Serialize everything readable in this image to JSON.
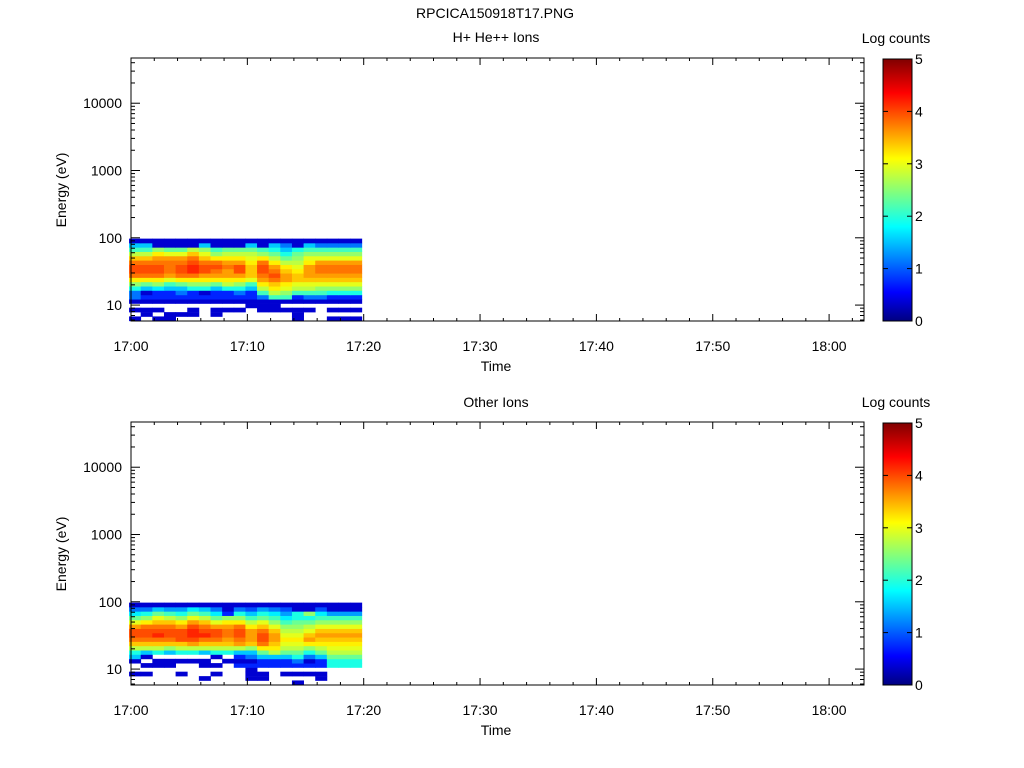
{
  "page": {
    "title": "RPCICA150918T17.PNG"
  },
  "chart_data": [
    {
      "type": "heatmap",
      "title": "H+ He++ Ions",
      "xlabel": "Time",
      "ylabel": "Energy (eV)",
      "x_ticks": [
        "17:00",
        "17:10",
        "17:20",
        "17:30",
        "17:40",
        "17:50",
        "18:00"
      ],
      "y_ticks": [
        "10",
        "100",
        "1000",
        "10000"
      ],
      "y_scale": "log",
      "ylim": [
        5.8,
        47000
      ],
      "xlim": [
        "17:00",
        "18:03"
      ],
      "colorbar": {
        "label": "Log counts",
        "ticks": [
          "0",
          "1",
          "2",
          "3",
          "4",
          "5"
        ],
        "range": [
          0,
          5
        ],
        "colormap": "jet"
      },
      "time_bins": [
        "17:00:20",
        "17:01:20",
        "17:02:20",
        "17:03:20",
        "17:04:20",
        "17:05:20",
        "17:06:20",
        "17:07:20",
        "17:08:20",
        "17:09:20",
        "17:10:20",
        "17:11:20",
        "17:12:20",
        "17:13:20",
        "17:14:20",
        "17:15:20",
        "17:16:20",
        "17:17:20",
        "17:18:20",
        "17:19:20"
      ],
      "energy_bins_eV": [
        6.3,
        7.3,
        8.5,
        9.8,
        11.4,
        13.2,
        15.3,
        17.8,
        20.6,
        23.9,
        27.7,
        32.1,
        37.2,
        43.1,
        50.0,
        58.0,
        67.2,
        77.9,
        90.3
      ],
      "log_counts": [
        [
          0.4,
          0,
          0.4,
          0.4,
          0,
          0,
          0,
          0,
          0,
          0,
          0,
          0,
          0,
          0,
          0.4,
          0,
          0,
          0.4,
          0.4,
          0.4
        ],
        [
          0,
          0.4,
          0,
          0.4,
          0.4,
          0.4,
          0,
          0.4,
          0,
          0,
          0,
          0,
          0,
          0,
          0.4,
          0,
          0,
          0,
          0,
          0
        ],
        [
          0.4,
          0.4,
          0.4,
          0,
          0,
          0.4,
          0,
          0.4,
          0.4,
          0.4,
          0,
          0.4,
          0.4,
          0.4,
          0.4,
          0.4,
          0,
          0.4,
          0.4,
          0.4
        ],
        [
          0,
          0,
          0,
          0,
          0,
          0,
          0,
          0,
          0,
          0,
          0.4,
          0.4,
          0.4,
          0,
          0,
          0,
          0,
          0,
          0,
          0
        ],
        [
          0.4,
          0.4,
          0.4,
          0.4,
          0.4,
          0.4,
          0.4,
          0.4,
          0.4,
          0.4,
          0.4,
          0.4,
          0.4,
          0.4,
          0.4,
          0.4,
          0.4,
          0.4,
          0.4,
          0.4
        ],
        [
          1.2,
          0.8,
          0.8,
          0.8,
          0.8,
          0.8,
          0.8,
          0.8,
          0.8,
          0.8,
          0.8,
          1.2,
          2.2,
          2.2,
          0.8,
          1.2,
          1.2,
          0.8,
          0.8,
          0.8
        ],
        [
          1.2,
          0.4,
          0.8,
          0.8,
          1.2,
          0.8,
          0.4,
          0.8,
          0.8,
          1.2,
          0.8,
          2.2,
          2.8,
          2.6,
          2.2,
          2.2,
          2.2,
          2.0,
          2.0,
          2.0
        ],
        [
          2.0,
          1.6,
          1.8,
          1.6,
          1.6,
          2.0,
          2.0,
          1.6,
          2.0,
          2.0,
          1.6,
          2.8,
          3.2,
          3.0,
          2.8,
          2.8,
          2.6,
          2.6,
          2.6,
          2.6
        ],
        [
          2.6,
          2.4,
          2.6,
          2.2,
          2.4,
          2.6,
          2.6,
          2.4,
          2.8,
          2.6,
          2.2,
          3.2,
          3.4,
          3.2,
          3.0,
          3.0,
          3.0,
          3.0,
          3.0,
          3.0
        ],
        [
          3.2,
          3.2,
          3.2,
          3.0,
          3.2,
          3.2,
          3.2,
          3.2,
          3.2,
          3.2,
          3.0,
          3.6,
          3.8,
          3.6,
          3.4,
          3.4,
          3.4,
          3.4,
          3.4,
          3.4
        ],
        [
          3.8,
          3.8,
          3.8,
          3.6,
          3.8,
          3.8,
          3.6,
          3.6,
          3.6,
          3.6,
          3.4,
          3.8,
          4.0,
          3.6,
          3.4,
          3.6,
          3.6,
          3.6,
          3.6,
          3.6
        ],
        [
          4.0,
          4.0,
          4.0,
          3.8,
          4.0,
          4.2,
          4.0,
          3.8,
          3.6,
          4.0,
          3.4,
          4.0,
          3.8,
          3.4,
          3.2,
          3.6,
          3.8,
          3.8,
          3.8,
          3.8
        ],
        [
          4.0,
          4.0,
          4.0,
          3.8,
          4.0,
          4.2,
          4.0,
          4.0,
          3.8,
          4.0,
          3.4,
          4.0,
          3.6,
          3.2,
          3.0,
          3.6,
          3.8,
          3.8,
          3.8,
          3.8
        ],
        [
          3.8,
          3.8,
          3.8,
          3.8,
          3.8,
          4.0,
          3.8,
          3.8,
          3.6,
          3.6,
          3.2,
          3.8,
          3.2,
          2.8,
          2.8,
          3.2,
          3.6,
          3.6,
          3.6,
          3.6
        ],
        [
          3.4,
          3.4,
          3.6,
          3.6,
          3.6,
          3.8,
          3.4,
          3.2,
          3.2,
          3.2,
          3.0,
          3.2,
          2.8,
          2.4,
          2.6,
          3.0,
          3.0,
          3.0,
          3.0,
          3.0
        ],
        [
          2.8,
          2.8,
          3.2,
          3.0,
          3.0,
          3.4,
          3.0,
          2.6,
          2.8,
          2.8,
          2.8,
          2.6,
          2.4,
          2.0,
          2.4,
          2.6,
          2.6,
          2.6,
          2.6,
          2.6
        ],
        [
          2.2,
          2.2,
          2.6,
          2.4,
          2.4,
          2.8,
          2.6,
          2.2,
          2.4,
          2.4,
          2.4,
          2.2,
          2.0,
          1.6,
          2.0,
          2.2,
          2.2,
          2.2,
          2.2,
          2.2
        ],
        [
          1.6,
          1.6,
          0.4,
          0.4,
          0.4,
          0.4,
          1.6,
          0.4,
          0.4,
          0.4,
          1.6,
          0.4,
          1.6,
          1.2,
          0.4,
          1.6,
          1.2,
          1.2,
          1.2,
          1.2
        ],
        [
          0.4,
          0.4,
          0.4,
          0.4,
          0.4,
          0.4,
          0.4,
          0.4,
          0.4,
          0.4,
          0.4,
          0.4,
          0.4,
          0.4,
          0.4,
          0.4,
          0.4,
          0.4,
          0.4,
          0.4
        ]
      ]
    },
    {
      "type": "heatmap",
      "title": "Other Ions",
      "xlabel": "Time",
      "ylabel": "Energy (eV)",
      "x_ticks": [
        "17:00",
        "17:10",
        "17:20",
        "17:30",
        "17:40",
        "17:50",
        "18:00"
      ],
      "y_ticks": [
        "10",
        "100",
        "1000",
        "10000"
      ],
      "y_scale": "log",
      "ylim": [
        5.8,
        47000
      ],
      "xlim": [
        "17:00",
        "18:03"
      ],
      "colorbar": {
        "label": "Log counts",
        "ticks": [
          "0",
          "1",
          "2",
          "3",
          "4",
          "5"
        ],
        "range": [
          0,
          5
        ],
        "colormap": "jet"
      },
      "time_bins": [
        "17:00:20",
        "17:01:20",
        "17:02:20",
        "17:03:20",
        "17:04:20",
        "17:05:20",
        "17:06:20",
        "17:07:20",
        "17:08:20",
        "17:09:20",
        "17:10:20",
        "17:11:20",
        "17:12:20",
        "17:13:20",
        "17:14:20",
        "17:15:20",
        "17:16:20",
        "17:17:20",
        "17:18:20",
        "17:19:20"
      ],
      "energy_bins_eV": [
        6.3,
        7.3,
        8.5,
        9.8,
        11.4,
        13.2,
        15.3,
        17.8,
        20.6,
        23.9,
        27.7,
        32.1,
        37.2,
        43.1,
        50.0,
        58.0,
        67.2,
        77.9,
        90.3
      ],
      "log_counts": [
        [
          0,
          0,
          0,
          0,
          0,
          0,
          0,
          0,
          0,
          0,
          0,
          0,
          0,
          0,
          0.4,
          0,
          0,
          0,
          0,
          0
        ],
        [
          0,
          0,
          0,
          0,
          0,
          0,
          0.4,
          0,
          0,
          0,
          0.4,
          0.4,
          0,
          0,
          0,
          0,
          0.4,
          0,
          0,
          0
        ],
        [
          0.4,
          0.4,
          0,
          0,
          0.4,
          0,
          0,
          0.4,
          0,
          0,
          0.4,
          0.4,
          0,
          0.4,
          0.4,
          0.4,
          0.4,
          0,
          0,
          0
        ],
        [
          0,
          0,
          0,
          0,
          0,
          0,
          0,
          0,
          0,
          0,
          0.4,
          0,
          0,
          0,
          0,
          0,
          0,
          0,
          0,
          0
        ],
        [
          0,
          0.4,
          0.4,
          0.4,
          0,
          0,
          0.4,
          0.4,
          0,
          0.8,
          0.8,
          0.8,
          0.8,
          0.8,
          0.8,
          0.8,
          0.8,
          2.0,
          2.0,
          2.0
        ],
        [
          0.4,
          0,
          0.4,
          0.4,
          0.4,
          0.4,
          0.4,
          0,
          0.4,
          0.4,
          0.4,
          0.8,
          0.8,
          0.8,
          1.2,
          0.4,
          0.8,
          2.0,
          2.0,
          2.0
        ],
        [
          1.6,
          0.4,
          0,
          0,
          0,
          0,
          0,
          0.4,
          0,
          0.8,
          1.2,
          1.6,
          1.6,
          1.6,
          2.0,
          1.2,
          1.6,
          2.4,
          2.4,
          2.4
        ],
        [
          2.0,
          1.6,
          2.0,
          1.6,
          2.0,
          2.0,
          1.6,
          2.0,
          2.0,
          1.6,
          1.6,
          2.4,
          2.8,
          2.4,
          2.4,
          2.0,
          2.4,
          2.8,
          2.8,
          2.8
        ],
        [
          2.8,
          2.8,
          2.8,
          2.6,
          2.8,
          2.8,
          2.8,
          2.8,
          2.8,
          2.8,
          2.6,
          3.2,
          3.2,
          2.8,
          2.8,
          2.6,
          2.8,
          3.0,
          3.0,
          3.0
        ],
        [
          3.4,
          3.4,
          3.4,
          3.4,
          3.4,
          3.6,
          3.4,
          3.4,
          3.4,
          3.6,
          3.4,
          3.8,
          3.4,
          3.0,
          3.0,
          3.2,
          3.2,
          3.2,
          3.2,
          3.2
        ],
        [
          3.8,
          3.8,
          3.8,
          3.8,
          4.0,
          4.0,
          3.8,
          3.8,
          3.6,
          3.8,
          3.6,
          4.0,
          3.6,
          3.2,
          3.2,
          3.6,
          3.4,
          3.4,
          3.4,
          3.4
        ],
        [
          4.0,
          4.0,
          4.2,
          4.0,
          4.0,
          4.2,
          4.2,
          4.0,
          3.8,
          4.0,
          3.6,
          4.0,
          3.6,
          3.0,
          3.0,
          3.4,
          3.6,
          3.6,
          3.6,
          3.6
        ],
        [
          4.0,
          4.0,
          4.0,
          4.0,
          4.0,
          4.2,
          4.0,
          4.0,
          3.8,
          4.0,
          3.6,
          3.8,
          3.4,
          2.8,
          2.8,
          3.0,
          3.4,
          3.4,
          3.4,
          3.4
        ],
        [
          3.6,
          3.8,
          3.8,
          3.8,
          3.6,
          4.0,
          3.8,
          3.6,
          3.6,
          3.8,
          3.2,
          3.4,
          3.0,
          2.6,
          2.6,
          2.8,
          3.0,
          3.0,
          3.0,
          3.0
        ],
        [
          3.0,
          3.2,
          3.4,
          3.4,
          3.2,
          3.6,
          3.4,
          3.0,
          3.2,
          3.2,
          2.8,
          3.0,
          2.6,
          2.2,
          2.4,
          2.4,
          2.6,
          2.6,
          2.6,
          2.6
        ],
        [
          2.4,
          2.6,
          3.0,
          2.8,
          2.6,
          3.0,
          2.8,
          2.4,
          2.6,
          2.6,
          2.2,
          2.4,
          2.2,
          1.8,
          2.0,
          2.0,
          2.2,
          2.2,
          2.2,
          2.2
        ],
        [
          1.8,
          2.0,
          2.4,
          2.2,
          2.0,
          2.4,
          2.2,
          1.8,
          0.8,
          2.0,
          1.6,
          2.0,
          1.8,
          1.4,
          2.0,
          2.6,
          1.8,
          1.4,
          1.4,
          1.4
        ],
        [
          1.2,
          1.2,
          1.6,
          1.4,
          1.4,
          1.8,
          1.6,
          1.2,
          0.4,
          1.2,
          1.0,
          1.4,
          1.2,
          1.0,
          0.4,
          0.4,
          1.0,
          0.4,
          0.4,
          0.4
        ],
        [
          0.4,
          0.4,
          0.4,
          0.4,
          0.4,
          0.4,
          0.4,
          0.4,
          0.4,
          0.4,
          0.4,
          0.4,
          0.4,
          0.4,
          0.4,
          0.4,
          0.4,
          0.4,
          0.4,
          0.4
        ]
      ]
    }
  ]
}
